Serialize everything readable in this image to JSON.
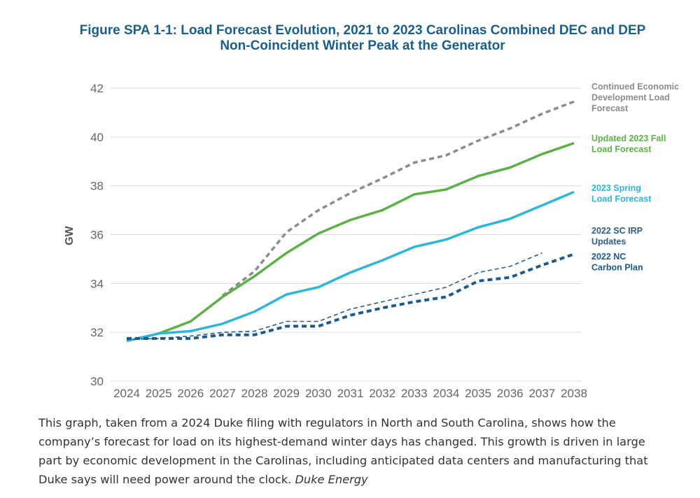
{
  "chart_data": {
    "type": "line",
    "title_line1": "Figure SPA 1-1: Load Forecast Evolution, 2021 to 2023 Carolinas Combined DEC and DEP",
    "title_line2": "Non-Coincident Winter Peak at the Generator",
    "ylabel": "GW",
    "xlabel": "",
    "ylim": [
      30,
      42
    ],
    "yticks": [
      "30",
      "32",
      "34",
      "36",
      "38",
      "40",
      "42"
    ],
    "x": [
      "2024",
      "2025",
      "2026",
      "2027",
      "2028",
      "2029",
      "2030",
      "2031",
      "2032",
      "2033",
      "2034",
      "2035",
      "2036",
      "2037",
      "2038"
    ],
    "grid": true,
    "legend_placement": "right",
    "series": [
      {
        "name": "Continued Economic Development Load Forecast",
        "legend_lines": [
          "Continued Economic",
          "Development Load",
          "Forecast"
        ],
        "color": "#8c8c8c",
        "style": "dashed",
        "values": [
          null,
          null,
          null,
          33.5,
          34.5,
          36.1,
          37.0,
          37.7,
          38.3,
          38.95,
          39.25,
          39.85,
          40.35,
          40.95,
          41.45
        ]
      },
      {
        "name": "Updated 2023 Fall Load Forecast",
        "legend_lines": [
          "Updated 2023 Fall",
          "Load Forecast"
        ],
        "color": "#5cb146",
        "style": "solid",
        "values": [
          31.65,
          31.95,
          32.45,
          33.45,
          34.3,
          35.25,
          36.05,
          36.6,
          37.0,
          37.65,
          37.85,
          38.4,
          38.75,
          39.3,
          39.75
        ]
      },
      {
        "name": "2023 Spring Load Forecast",
        "legend_lines": [
          "2023 Spring",
          "Load Forecast"
        ],
        "color": "#2eb6d9",
        "style": "solid",
        "values": [
          31.65,
          31.95,
          32.05,
          32.35,
          32.85,
          33.55,
          33.85,
          34.45,
          34.95,
          35.5,
          35.8,
          36.3,
          36.65,
          37.2,
          37.75
        ]
      },
      {
        "name": "2022 SC IRP Updates",
        "legend_lines": [
          "2022 SC IRP",
          "Updates"
        ],
        "color": "#2a5f8c",
        "style": "thin-dashed",
        "values": [
          31.7,
          31.75,
          31.85,
          32.0,
          32.05,
          32.45,
          32.45,
          32.95,
          33.25,
          33.55,
          33.85,
          34.45,
          34.7,
          35.25,
          null
        ]
      },
      {
        "name": "2022 NC Carbon Plan",
        "legend_lines": [
          "2022 NC",
          "Carbon Plan"
        ],
        "color": "#1d5a8c",
        "style": "thick-dashed",
        "values": [
          31.75,
          31.75,
          31.75,
          31.9,
          31.9,
          32.25,
          32.25,
          32.7,
          33.0,
          33.25,
          33.45,
          34.1,
          34.25,
          34.75,
          35.2
        ]
      }
    ]
  },
  "caption": {
    "text": "This graph, taken from a 2024 Duke filing with regulators in North and South Carolina, shows how the company’s forecast for load on its highest-demand winter days has changed. This growth is driven in large part by economic development in the Carolinas, including anticipated data centers and manufacturing that Duke says will need power around the clock.",
    "credit": "Duke Energy"
  }
}
